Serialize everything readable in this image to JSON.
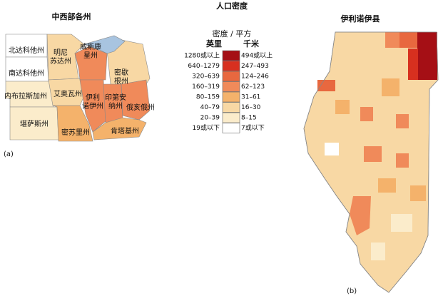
{
  "title": "人口密度",
  "map_a": {
    "title": "中西部各州",
    "tag": "(a)",
    "states": [
      "北达科他州",
      "南达科他州",
      "内布拉斯加州",
      "堪萨斯州",
      "明尼\n苏达州",
      "艾奥瓦州",
      "密苏里州",
      "威斯康\n星州",
      "伊利\n诺伊州",
      "印第安\n纳州",
      "密歇\n根州",
      "俄亥俄州",
      "肯塔基州"
    ]
  },
  "map_b": {
    "title": "伊利诺伊县",
    "tag": "(b)"
  },
  "legend": {
    "header": "密度 / 平方",
    "unit_mile": "英里",
    "unit_km": "千米",
    "rows": [
      {
        "mile": "1280或以上",
        "km": "494或以上",
        "color": "#a50f15"
      },
      {
        "mile": "640–1279",
        "km": "247–493",
        "color": "#d7301f"
      },
      {
        "mile": "320–639",
        "km": "124–246",
        "color": "#e8683f"
      },
      {
        "mile": "160–319",
        "km": "62–123",
        "color": "#f08a5a"
      },
      {
        "mile": "80–159",
        "km": "31–61",
        "color": "#f4b26b"
      },
      {
        "mile": "40–79",
        "km": "16–30",
        "color": "#f8d8a4"
      },
      {
        "mile": "20–39",
        "km": "8–15",
        "color": "#fbeccb"
      },
      {
        "mile": "19或以下",
        "km": "7或以下",
        "color": "#ffffff"
      }
    ]
  }
}
